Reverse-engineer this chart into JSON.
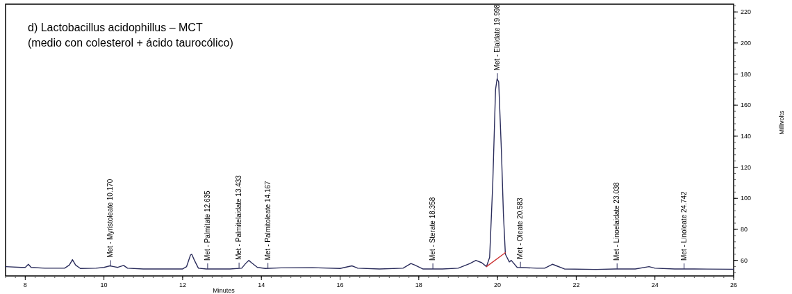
{
  "chart_data": {
    "type": "line",
    "title": "d) Lactobacillus acidophillus – MCT",
    "subtitle": "(medio con colesterol + ácido taurocólico)",
    "xlabel": "Minutes",
    "ylabel": "Millivolts",
    "xlim": [
      7.5,
      26
    ],
    "xticks": [
      8,
      10,
      12,
      14,
      16,
      18,
      20,
      22,
      24,
      26
    ],
    "ylim": [
      50,
      225
    ],
    "yticks": [
      60,
      80,
      100,
      120,
      140,
      160,
      180,
      200,
      220
    ],
    "marker": "none",
    "line_style": "solid",
    "series": [
      {
        "color": "#2b2d5c",
        "x": [
          7.5,
          7.9,
          8.0,
          8.08,
          8.15,
          8.5,
          9.0,
          9.12,
          9.2,
          9.28,
          9.4,
          9.8,
          10.0,
          10.15,
          10.25,
          10.35,
          10.5,
          10.6,
          11.0,
          11.5,
          12.0,
          12.1,
          12.2,
          12.23,
          12.3,
          12.4,
          12.6,
          13.2,
          13.5,
          13.6,
          13.68,
          13.75,
          13.9,
          14.1,
          14.5,
          15.3,
          16.0,
          16.3,
          16.45,
          17.0,
          17.6,
          17.8,
          17.9,
          18.1,
          18.6,
          19.0,
          19.3,
          19.45,
          19.6,
          19.72,
          19.8,
          19.88,
          19.95,
          19.99,
          20.03,
          20.1,
          20.15,
          20.2,
          20.3,
          20.35,
          20.5,
          21.0,
          21.2,
          21.4,
          21.5,
          21.7,
          22.5,
          23.0,
          23.5,
          23.85,
          24.0,
          24.5,
          25.0,
          26.0
        ],
        "values": [
          56,
          55.5,
          55.5,
          57.5,
          55.5,
          55,
          55,
          57,
          60.5,
          57,
          54.8,
          55,
          55.5,
          56.5,
          56,
          55.5,
          56.8,
          55,
          54.5,
          54.5,
          54.5,
          56,
          63.5,
          64,
          60,
          55,
          54.5,
          54.5,
          55,
          58,
          60,
          58.5,
          55.5,
          54.8,
          55.2,
          55.3,
          54.8,
          56.5,
          55,
          54.5,
          55,
          58,
          57,
          54.5,
          54.5,
          55,
          58,
          60,
          58.5,
          56,
          62,
          110,
          170,
          177,
          175,
          130,
          90,
          64,
          59,
          60,
          55.5,
          55,
          55,
          57.5,
          56.5,
          54.5,
          54.2,
          54.5,
          54.5,
          56,
          55,
          54.5,
          54.5,
          54.3
        ]
      },
      {
        "color": "#cc3333",
        "x": [
          19.72,
          20.2
        ],
        "values": [
          56,
          65
        ]
      }
    ],
    "annotations": [
      {
        "text": "Met - Myristoleate 10.170",
        "x": 10.17,
        "y": 56.5
      },
      {
        "text": "Met - Palmitate 12.635",
        "x": 12.635,
        "y": 54.5
      },
      {
        "text": "Met - Palmitelaidate 13.433",
        "x": 13.433,
        "y": 55
      },
      {
        "text": "Met - Palmitoleate 14.167",
        "x": 14.167,
        "y": 54.8
      },
      {
        "text": "Met - Sterate 18.358",
        "x": 18.358,
        "y": 54.5
      },
      {
        "text": "Met - Elaidate 19.998",
        "x": 19.998,
        "y": 177
      },
      {
        "text": "Met - Oleate 20.583",
        "x": 20.583,
        "y": 55.5
      },
      {
        "text": "Met - Linoelaidate 23.038",
        "x": 23.038,
        "y": 54.5
      },
      {
        "text": "Met - Linoleate 24.742",
        "x": 24.742,
        "y": 54.5
      }
    ]
  }
}
